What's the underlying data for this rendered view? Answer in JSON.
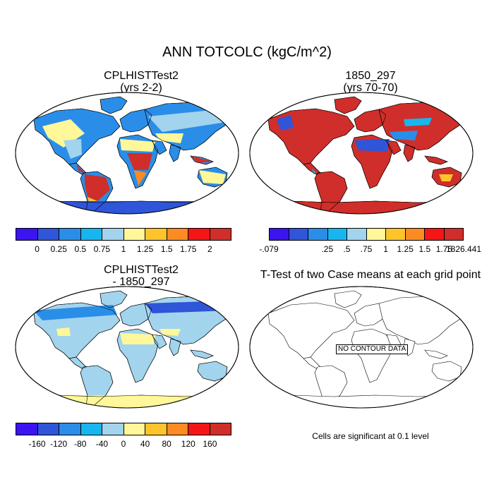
{
  "main_title": "ANN TOTCOLC (kgC/m^2)",
  "panels": [
    {
      "title": "CPLHISTTest2",
      "subtitle": "(yrs 2-2)"
    },
    {
      "title": "1850_297",
      "subtitle": "(yrs 70-70)"
    },
    {
      "title": "CPLHISTTest2",
      "subtitle": "- 1850_297"
    },
    {
      "title": "T-Test of two Case means at each grid point",
      "subtitle": ""
    }
  ],
  "colorbars": [
    {
      "colors": [
        "#3b14f0",
        "#2f55d8",
        "#2a8ee8",
        "#17b6ee",
        "#a2d4ee",
        "#fff79a",
        "#fdc42b",
        "#fb8b22",
        "#f41616",
        "#d02e2a"
      ],
      "labels": [
        "0",
        "0.25",
        "0.5",
        "0.75",
        "1",
        "1.25",
        "1.5",
        "1.75",
        "2"
      ]
    },
    {
      "colors": [
        "#3b14f0",
        "#2f55d8",
        "#2a8ee8",
        "#17b6ee",
        "#a2d4ee",
        "#fff79a",
        "#fdc42b",
        "#fb8b22",
        "#f41616",
        "#d02e2a"
      ],
      "labels": [
        "-.079",
        "",
        "",
        ".25",
        ".5",
        ".75",
        "1",
        "1.25",
        "1.5",
        "1.75",
        "1826.441"
      ]
    },
    {
      "colors": [
        "#3b14f0",
        "#2f55d8",
        "#2a8ee8",
        "#17b6ee",
        "#a2d4ee",
        "#fff79a",
        "#fdc42b",
        "#fb8b22",
        "#f41616",
        "#d02e2a"
      ],
      "labels": [
        "-160",
        "-120",
        "-80",
        "-40",
        "0",
        "40",
        "80",
        "120",
        "160"
      ]
    }
  ],
  "no_data_label": "NO CONTOUR DATA",
  "footnote": "Cells are significant at 0.1 level"
}
